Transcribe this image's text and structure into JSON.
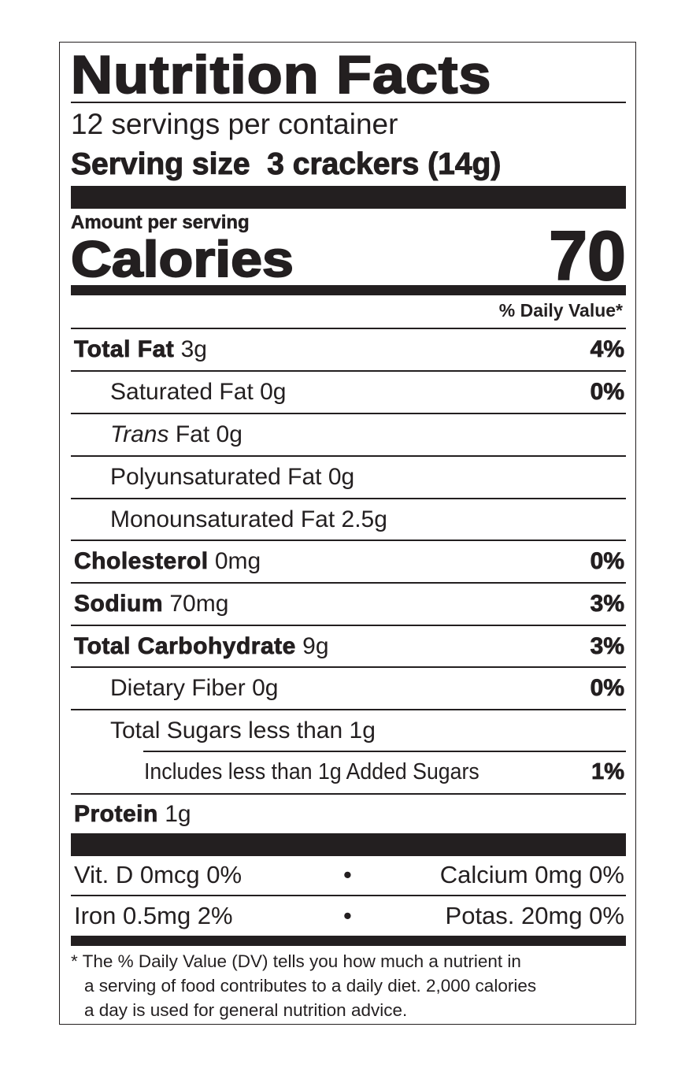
{
  "title": "Nutrition Facts",
  "servings_per_container": "12 servings per container",
  "serving_size_label": "Serving size",
  "serving_size_value": "3 crackers (14g)",
  "amount_per_serving": "Amount per serving",
  "calories_label": "Calories",
  "calories_value": "70",
  "daily_value_header": "% Daily Value*",
  "nutrients": [
    {
      "name": "Total Fat",
      "amount": "3g",
      "dv": "4%"
    },
    {
      "name": "Saturated Fat",
      "amount": "0g",
      "dv": "0%"
    },
    {
      "name": "Trans",
      "name_suffix": "Fat",
      "amount": "0g",
      "dv": ""
    },
    {
      "name": "Polyunsaturated Fat",
      "amount": "0g",
      "dv": ""
    },
    {
      "name": "Monounsaturated Fat",
      "amount": "2.5g",
      "dv": ""
    },
    {
      "name": "Cholesterol",
      "amount": "0mg",
      "dv": "0%"
    },
    {
      "name": "Sodium",
      "amount": "70mg",
      "dv": "3%"
    },
    {
      "name": "Total Carbohydrate",
      "amount": "9g",
      "dv": "3%"
    },
    {
      "name": "Dietary Fiber",
      "amount": "0g",
      "dv": "0%"
    },
    {
      "name": "Total Sugars less than",
      "amount": "1g",
      "dv": ""
    },
    {
      "name": "Includes less than 1g Added Sugars",
      "amount": "",
      "dv": "1%"
    },
    {
      "name": "Protein",
      "amount": "1g",
      "dv": ""
    }
  ],
  "vitamins": [
    {
      "left": "Vit. D 0mcg 0%",
      "bullet": "•",
      "right": "Calcium 0mg 0%"
    },
    {
      "left": "Iron 0.5mg 2%",
      "bullet": "•",
      "right": "Potas. 20mg 0%"
    }
  ],
  "footnote": [
    "* The % Daily Value (DV) tells you how much a nutrient in",
    "a serving of food contributes to a daily diet. 2,000 calories",
    "a day is used for general nutrition advice."
  ]
}
